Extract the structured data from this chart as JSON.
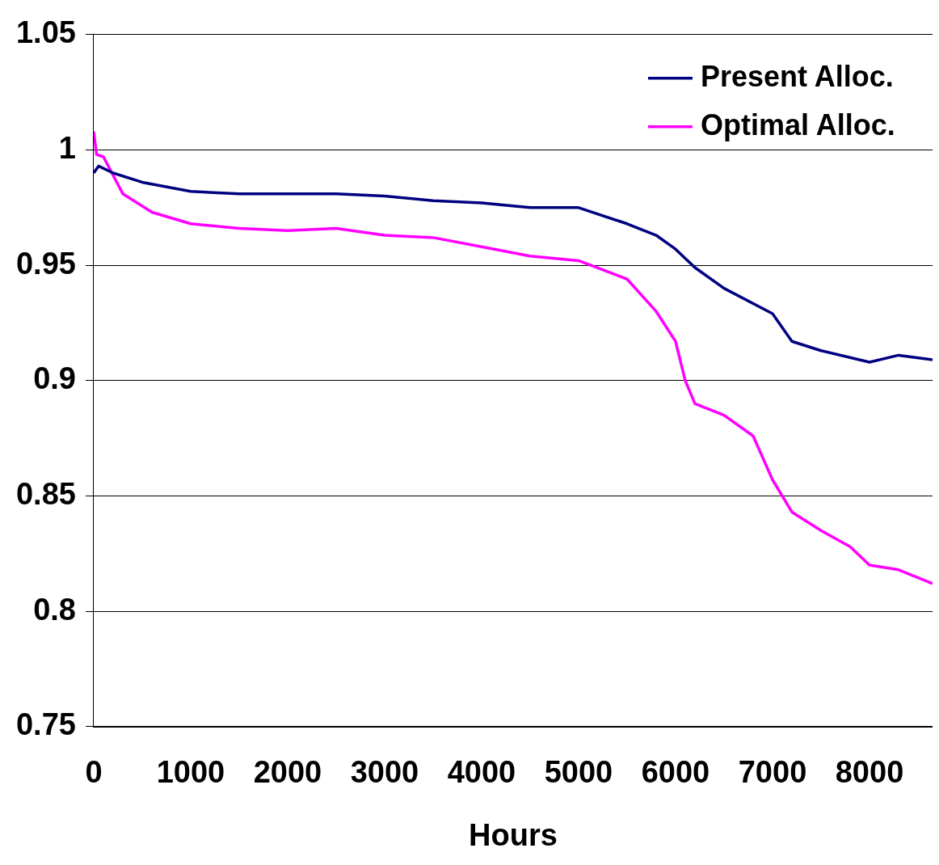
{
  "chart_data": {
    "type": "line",
    "xlabel": "Hours",
    "xlim": [
      0,
      8650
    ],
    "xticks": [
      0,
      1000,
      2000,
      3000,
      4000,
      5000,
      6000,
      7000,
      8000
    ],
    "ylim": [
      0.75,
      1.05
    ],
    "yticks": [
      0.75,
      0.8,
      0.85,
      0.9,
      0.95,
      1,
      1.05
    ],
    "grid": "y",
    "legend": "top right",
    "marker": "none",
    "line_style": "solid",
    "series": [
      {
        "name": "Present Alloc.",
        "color": "#000080",
        "x": [
          0,
          50,
          200,
          500,
          1000,
          1500,
          2000,
          2500,
          3000,
          3500,
          4000,
          4500,
          5000,
          5500,
          5800,
          6000,
          6200,
          6500,
          7000,
          7200,
          7500,
          8000,
          8300,
          8650
        ],
        "values": [
          0.99,
          0.993,
          0.99,
          0.986,
          0.982,
          0.981,
          0.981,
          0.981,
          0.98,
          0.978,
          0.977,
          0.975,
          0.975,
          0.968,
          0.963,
          0.957,
          0.949,
          0.94,
          0.929,
          0.917,
          0.913,
          0.908,
          0.911,
          0.909
        ]
      },
      {
        "name": "Optimal Alloc.",
        "color": "#ff00ff",
        "x": [
          0,
          30,
          100,
          300,
          600,
          1000,
          1500,
          2000,
          2500,
          3000,
          3500,
          4000,
          4500,
          5000,
          5500,
          5800,
          6000,
          6100,
          6200,
          6500,
          6800,
          7000,
          7200,
          7500,
          7800,
          8000,
          8300,
          8650
        ],
        "values": [
          1.008,
          0.998,
          0.997,
          0.981,
          0.973,
          0.968,
          0.966,
          0.965,
          0.966,
          0.963,
          0.962,
          0.958,
          0.954,
          0.952,
          0.944,
          0.93,
          0.917,
          0.9,
          0.89,
          0.885,
          0.876,
          0.857,
          0.843,
          0.835,
          0.828,
          0.82,
          0.818,
          0.812
        ]
      }
    ]
  }
}
